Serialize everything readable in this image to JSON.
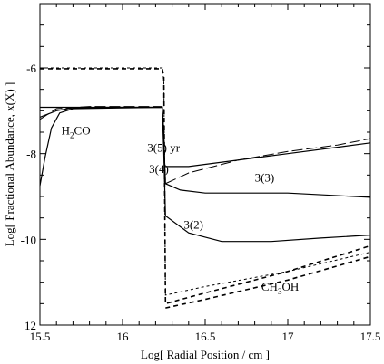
{
  "chart_data": {
    "type": "line",
    "xlabel": "Log[ Radial Position / cm ]",
    "ylabel": "Log[ Fractional Abundance, x(X) ]",
    "xlim": [
      15.5,
      17.5
    ],
    "ylim": [
      12,
      4.5
    ],
    "y_axis_inverted": true,
    "grid": false,
    "x_ticks": [
      "15.5",
      "16",
      "16.5",
      "17",
      "17.5"
    ],
    "y_ticks": [
      "-6",
      "-8",
      "-10",
      "12"
    ],
    "y_tick_values": [
      6,
      8,
      10,
      12
    ],
    "annotations": [
      {
        "id": "h2co",
        "text": "H",
        "sub": "2",
        "text2": "CO",
        "x": 15.63,
        "y": 7.55
      },
      {
        "id": "t35",
        "text": "3(5)  yr",
        "x": 16.15,
        "y": 7.95
      },
      {
        "id": "t34",
        "text": "3(4)",
        "x": 16.16,
        "y": 8.45
      },
      {
        "id": "t33",
        "text": "3(3)",
        "x": 16.8,
        "y": 8.65
      },
      {
        "id": "t32",
        "text": "3(2)",
        "x": 16.37,
        "y": 9.75
      },
      {
        "id": "ch3oh",
        "text": "CH",
        "sub": "3",
        "text2": "OH",
        "x": 16.84,
        "y": 11.2
      }
    ],
    "series": [
      {
        "dash": "5,4",
        "stroke": 1.6,
        "points": [
          [
            15.5,
            6.02
          ],
          [
            16.24,
            6.02
          ],
          [
            16.25,
            6.2
          ],
          [
            16.26,
            11.5
          ],
          [
            16.5,
            11.25
          ],
          [
            17.0,
            10.75
          ],
          [
            17.5,
            10.15
          ]
        ]
      },
      {
        "dash": "3,3",
        "stroke": 1.0,
        "points": [
          [
            15.5,
            6.0
          ],
          [
            16.24,
            6.0
          ],
          [
            16.25,
            6.3
          ],
          [
            16.26,
            11.3
          ],
          [
            16.5,
            11.1
          ],
          [
            17.0,
            10.75
          ],
          [
            17.5,
            10.3
          ]
        ]
      },
      {
        "dash": "5,4",
        "stroke": 1.6,
        "points": [
          [
            16.26,
            11.6
          ],
          [
            16.5,
            11.4
          ],
          [
            17.0,
            10.95
          ],
          [
            17.5,
            10.4
          ]
        ]
      },
      {
        "dash": "",
        "stroke": 1.2,
        "points": [
          [
            15.5,
            7.15
          ],
          [
            15.6,
            7.0
          ],
          [
            15.7,
            6.93
          ],
          [
            15.9,
            6.92
          ],
          [
            16.24,
            6.92
          ],
          [
            16.25,
            7.5
          ],
          [
            16.255,
            8.3
          ],
          [
            16.3,
            8.3
          ],
          [
            16.4,
            8.3
          ],
          [
            16.5,
            8.25
          ],
          [
            16.8,
            8.1
          ],
          [
            17.0,
            8.0
          ],
          [
            17.3,
            7.85
          ],
          [
            17.5,
            7.75
          ]
        ]
      },
      {
        "dash": "12,4",
        "stroke": 1.0,
        "points": [
          [
            15.5,
            7.2
          ],
          [
            15.6,
            6.95
          ],
          [
            15.8,
            6.9
          ],
          [
            16.24,
            6.9
          ],
          [
            16.25,
            7.6
          ],
          [
            16.26,
            8.7
          ],
          [
            16.4,
            8.45
          ],
          [
            16.7,
            8.15
          ],
          [
            17.0,
            7.95
          ],
          [
            17.3,
            7.8
          ],
          [
            17.5,
            7.65
          ]
        ]
      },
      {
        "dash": "",
        "stroke": 1.2,
        "points": [
          [
            15.5,
            8.75
          ],
          [
            15.53,
            8.1
          ],
          [
            15.57,
            7.4
          ],
          [
            15.62,
            7.05
          ],
          [
            15.7,
            6.95
          ],
          [
            16.24,
            6.92
          ],
          [
            16.25,
            7.7
          ],
          [
            16.26,
            8.7
          ],
          [
            16.35,
            8.85
          ],
          [
            16.5,
            8.92
          ],
          [
            17.0,
            8.92
          ],
          [
            17.5,
            9.02
          ]
        ]
      },
      {
        "dash": "",
        "stroke": 1.2,
        "points": [
          [
            15.5,
            6.92
          ],
          [
            16.24,
            6.92
          ],
          [
            16.25,
            8.0
          ],
          [
            16.26,
            9.45
          ],
          [
            16.4,
            9.85
          ],
          [
            16.6,
            10.05
          ],
          [
            16.9,
            10.05
          ],
          [
            17.2,
            9.97
          ],
          [
            17.5,
            9.9
          ]
        ]
      }
    ]
  }
}
